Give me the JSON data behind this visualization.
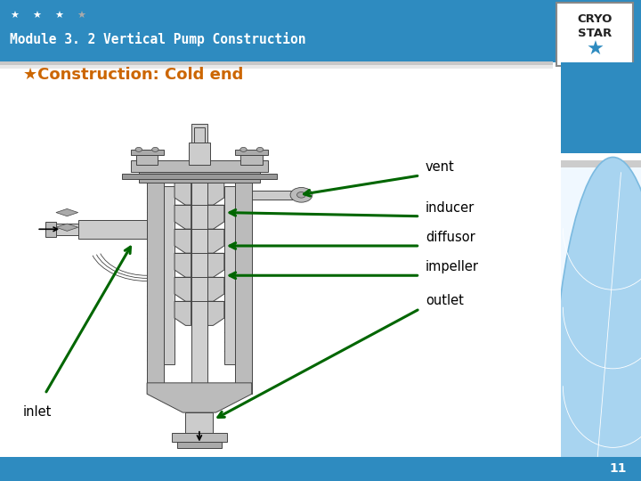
{
  "title": "Module 3. 2 Vertical Pump Construction",
  "header_bg": "#2E8BC0",
  "header_text_color": "#FFFFFF",
  "slide_bg": "#FFFFFF",
  "star_colors": [
    "#FFFFFF",
    "#FFFFFF",
    "#FFFFFF",
    "#AAAAAA"
  ],
  "section_title": "★Construction: Cold end",
  "section_title_color": "#CC6600",
  "label_color": "#000000",
  "arrow_color": "#006600",
  "page_number": "11",
  "footer_bg": "#2E8BC0",
  "logo_border": "#888888",
  "right_panel_blue": "#2E8BC0",
  "right_panel_separator_gray": "#AAAAAA",
  "right_panel_separator_white": "#FFFFFF",
  "globe_color": "#A8D4F0",
  "globe_line": "#7BBAE0"
}
